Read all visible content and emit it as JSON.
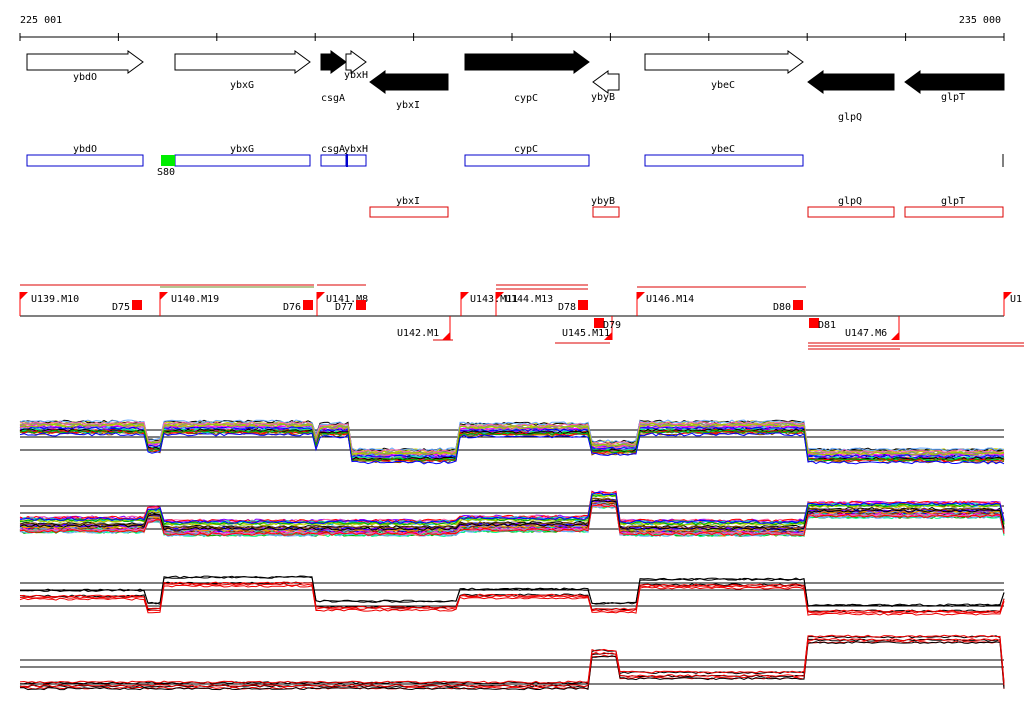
{
  "ruler": {
    "start_label": "225 001",
    "end_label": "235 000"
  },
  "genes": [
    {
      "name": "ybdO",
      "strand": "+",
      "filled": false
    },
    {
      "name": "ybxG",
      "strand": "+",
      "filled": false
    },
    {
      "name": "csgA",
      "strand": "+",
      "filled": true
    },
    {
      "name": "ybxH",
      "strand": "+",
      "filled": false
    },
    {
      "name": "ybxI",
      "strand": "-",
      "filled": true
    },
    {
      "name": "cypC",
      "strand": "+",
      "filled": true
    },
    {
      "name": "ybyB",
      "strand": "-",
      "filled": false
    },
    {
      "name": "ybeC",
      "strand": "+",
      "filled": false
    },
    {
      "name": "glpQ",
      "strand": "-",
      "filled": true
    },
    {
      "name": "glpT",
      "strand": "-",
      "filled": true
    }
  ],
  "forward_boxes": [
    "ybdO",
    "ybxG",
    "csgA",
    "ybxH",
    "cypC",
    "ybeC"
  ],
  "forward_marker": {
    "label": "S80",
    "color": "#00ee00"
  },
  "reverse_boxes": [
    "ybxI",
    "ybyB",
    "glpQ",
    "glpT"
  ],
  "upper_segments": [
    "U139.M10",
    "U140.M19",
    "U141.M8",
    "U143.M11",
    "U144.M13",
    "U146.M14",
    "U1"
  ],
  "upper_d_labels": [
    "D75",
    "D76",
    "D77",
    "D78",
    "D80"
  ],
  "lower_segments": [
    "U142.M1",
    "U145.M11",
    "U147.M6"
  ],
  "lower_d_labels": [
    "D79",
    "D81"
  ],
  "colors": {
    "forward_box": "#0000cc",
    "reverse_box": "#dd0000",
    "marker": "#ff0000",
    "trace_primary": "#000000",
    "trace_secondary": "#ee0000",
    "trace_palette": [
      "#000000",
      "#ff0000",
      "#00aa00",
      "#0000ff",
      "#ff00ff",
      "#00cccc",
      "#cccc00",
      "#ff8800",
      "#8800ff",
      "#00ff88",
      "#888888",
      "#884400",
      "#66aaff",
      "#ff66aa",
      "#99cc00"
    ]
  }
}
